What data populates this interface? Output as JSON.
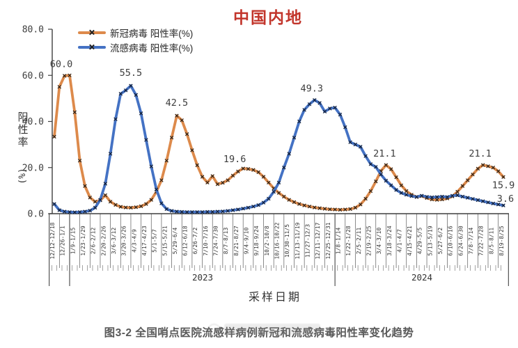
{
  "title": "中国内地",
  "title_color": "#C2352B",
  "legend": [
    {
      "label": "新冠病毒 阳性率(%)",
      "color": "#DD8A4B"
    },
    {
      "label": "流感病毒 阳性率(%)",
      "color": "#4472C4"
    }
  ],
  "y_axis": {
    "title": "阳性率",
    "unit": "(%)"
  },
  "x_axis": {
    "title": "采样日期"
  },
  "caption": "图3-2 全国哨点医院流感样病例新冠和流感病毒阳性率变化趋势",
  "chart_data": {
    "type": "line",
    "title": "中国内地",
    "ylabel": "阳性率(%)",
    "xlabel": "采样日期",
    "ylim": [
      0,
      80
    ],
    "y_ticks": [
      "0.0",
      "20.0",
      "40.0",
      "60.0",
      "80.0"
    ],
    "y_tick_values": [
      0,
      20,
      40,
      60,
      80
    ],
    "grid": false,
    "legend_position": "top-left-inside",
    "x_labels_biweekly": [
      "12/12-12/18",
      "12/26-1/1",
      "1/9-1/15",
      "1/23-1/29",
      "2/6-2/12",
      "2/20-2/26",
      "3/6-3/12",
      "3/20-3/26",
      "4/3-4/9",
      "4/17-4/23",
      "5/1-5/7",
      "5/15-5/21",
      "5/29-6/4",
      "6/12-6/18",
      "6/26-7/2",
      "7/10-7/16",
      "7/24-7/30",
      "8/7-8/13",
      "8/21-8/27",
      "9/4-9/10",
      "9/18-9/24",
      "10/2-10/8",
      "10/16-10/22",
      "10/30-11/5",
      "11/13-11/19",
      "11/27-12/3",
      "12/11-12/17",
      "12/25-12/31",
      "1/8-1/14",
      "1/22-1/28",
      "2/5-2/11",
      "2/19-2/25",
      "3/4-3/10",
      "3/18-3/24",
      "4/1-4/7",
      "4/15-4/21",
      "4/29-5/5",
      "5/13-5/19",
      "5/27-6/2",
      "6/10-6/16",
      "6/24-6/30",
      "7/8-7/14",
      "7/22-7/28",
      "8/5-8/11",
      "8/19-8/25"
    ],
    "year_groups": [
      {
        "label": "",
        "n_labels": 2
      },
      {
        "label": "2023",
        "n_labels": 26
      },
      {
        "label": "2024",
        "n_labels": 17
      }
    ],
    "series": [
      {
        "name": "新冠病毒 阳性率(%)",
        "color": "#DD8A4B",
        "marker": "x",
        "marker_color": "#2b2117",
        "values": [
          33.4,
          55.0,
          59.8,
          60.0,
          44.0,
          23.0,
          12.0,
          7.0,
          5.2,
          5.8,
          8.0,
          5.2,
          3.8,
          3.0,
          2.7,
          2.6,
          2.8,
          3.2,
          4.2,
          6.0,
          9.5,
          14.5,
          23.0,
          33.0,
          42.5,
          40.5,
          34.5,
          27.5,
          21.0,
          16.0,
          13.5,
          16.3,
          12.8,
          13.4,
          14.5,
          16.5,
          18.3,
          19.6,
          19.4,
          19.0,
          18.0,
          16.0,
          13.5,
          11.0,
          9.0,
          7.4,
          6.0,
          5.0,
          4.2,
          3.6,
          3.1,
          2.7,
          2.4,
          2.1,
          1.9,
          1.8,
          1.7,
          1.8,
          2.0,
          2.6,
          4.0,
          6.5,
          9.8,
          14.0,
          18.5,
          21.1,
          19.3,
          15.8,
          12.3,
          9.8,
          8.2,
          7.2,
          7.6,
          6.8,
          6.2,
          6.0,
          6.2,
          6.6,
          7.5,
          9.5,
          12.0,
          14.5,
          17.0,
          19.5,
          21.1,
          20.6,
          20.0,
          18.4,
          15.9
        ],
        "annotations": [
          {
            "i": 3,
            "text": "60.0",
            "dx": -12,
            "dy": -12
          },
          {
            "i": 24,
            "text": "42.5",
            "dx": 0,
            "dy": -14
          },
          {
            "i": 37,
            "text": "19.6",
            "dx": -12,
            "dy": -9
          },
          {
            "i": 65,
            "text": "21.1",
            "dx": -2,
            "dy": -12
          },
          {
            "i": 84,
            "text": "21.1",
            "dx": -4,
            "dy": -12
          },
          {
            "i": 88,
            "text": "15.9",
            "dx": 0,
            "dy": 16
          }
        ]
      },
      {
        "name": "流感病毒 阳性率(%)",
        "color": "#4472C4",
        "marker": "x",
        "marker_color": "#141f35",
        "values": [
          4.2,
          1.5,
          0.9,
          0.7,
          0.6,
          0.7,
          0.9,
          1.3,
          2.6,
          6.0,
          13.0,
          26.0,
          41.0,
          52.0,
          53.5,
          55.5,
          51.5,
          43.5,
          32.0,
          20.5,
          10.5,
          4.5,
          2.0,
          1.2,
          0.9,
          0.8,
          0.7,
          0.7,
          0.7,
          0.7,
          0.8,
          0.8,
          0.9,
          1.0,
          1.2,
          1.5,
          1.8,
          2.2,
          2.6,
          3.1,
          3.7,
          4.8,
          6.5,
          9.5,
          13.5,
          20.0,
          26.0,
          33.0,
          40.0,
          45.0,
          47.5,
          49.3,
          48.0,
          44.3,
          45.6,
          46.0,
          43.0,
          37.5,
          31.0,
          30.0,
          29.0,
          25.0,
          21.5,
          20.3,
          17.0,
          14.3,
          12.3,
          10.3,
          9.0,
          8.2,
          7.6,
          7.3,
          7.8,
          7.3,
          7.1,
          7.2,
          7.4,
          7.2,
          7.8,
          8.0,
          7.4,
          6.9,
          6.4,
          5.9,
          5.4,
          4.9,
          4.4,
          4.0,
          3.6
        ],
        "annotations": [
          {
            "i": 15,
            "text": "55.5",
            "dx": 0,
            "dy": -14
          },
          {
            "i": 51,
            "text": "49.3",
            "dx": -4,
            "dy": -12
          },
          {
            "i": 88,
            "text": "3.6",
            "dx": 3,
            "dy": -5
          }
        ]
      }
    ]
  }
}
